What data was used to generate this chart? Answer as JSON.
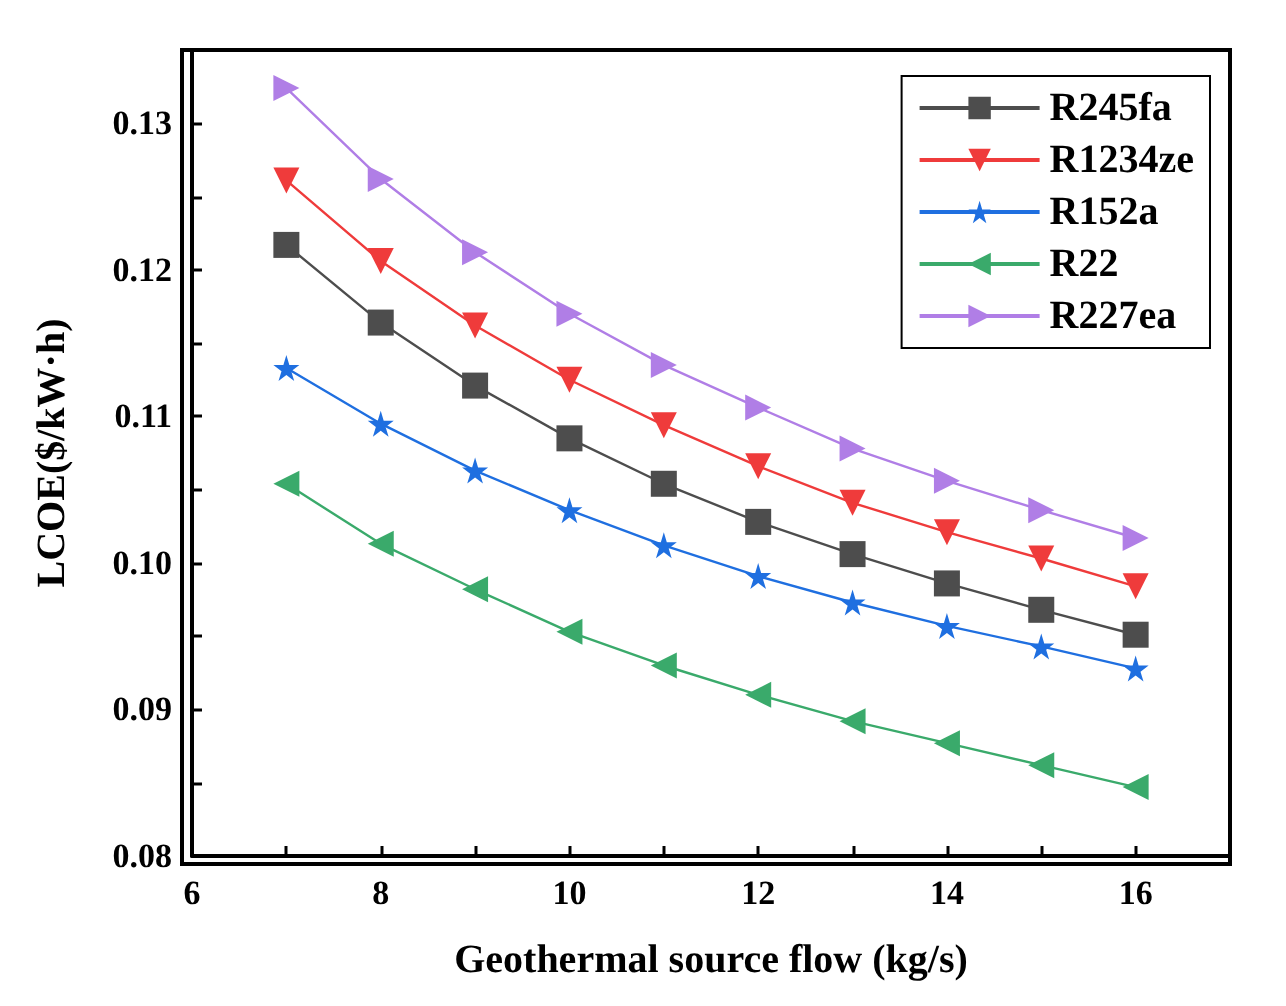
{
  "chart_data": {
    "type": "line",
    "xlabel": "Geothermal source flow (kg/s)",
    "ylabel": "LCOE($/kW·h)",
    "x": [
      7,
      8,
      9,
      10,
      11,
      12,
      13,
      14,
      15,
      16
    ],
    "xlim": [
      6,
      17
    ],
    "xticks": [
      6,
      {
        "value": 7,
        "label": null
      },
      8,
      {
        "value": 9,
        "label": null
      },
      10,
      {
        "value": 11,
        "label": null
      },
      12,
      {
        "value": 13,
        "label": null
      },
      14,
      {
        "value": 15,
        "label": null
      },
      16
    ],
    "ylim": [
      0.08,
      0.135
    ],
    "yticks": [
      0.08,
      {
        "value": 0.085,
        "label": null
      },
      0.09,
      {
        "value": 0.095,
        "label": null
      },
      {
        "value": 0.1,
        "label": "0.10"
      },
      {
        "value": 0.105,
        "label": null
      },
      0.11,
      {
        "value": 0.115,
        "label": null
      },
      0.12,
      {
        "value": 0.125,
        "label": null
      },
      0.13
    ],
    "grid": false,
    "legend": "top right",
    "line_style": "solid",
    "series": [
      {
        "name": "R245fa",
        "color": "#4d4d4d",
        "marker": "square",
        "values": [
          0.1217,
          0.1164,
          0.1121,
          0.1085,
          0.1054,
          0.1028,
          0.1006,
          0.0986,
          0.0968,
          0.0951
        ]
      },
      {
        "name": "R1234ze",
        "color": "#ef3b3b",
        "marker": "triangle-down",
        "values": [
          0.1261,
          0.1206,
          0.1162,
          0.1125,
          0.1094,
          0.1066,
          0.1041,
          0.1021,
          0.1003,
          0.0984
        ]
      },
      {
        "name": "R152a",
        "color": "#1f6fe0",
        "marker": "star",
        "values": [
          0.1133,
          0.1095,
          0.1063,
          0.1036,
          0.1012,
          0.0991,
          0.0973,
          0.0957,
          0.0943,
          0.0928
        ]
      },
      {
        "name": "R22",
        "color": "#3aaa6b",
        "marker": "triangle-left",
        "values": [
          0.1054,
          0.1013,
          0.0982,
          0.0953,
          0.093,
          0.091,
          0.0892,
          0.0877,
          0.0862,
          0.0847
        ]
      },
      {
        "name": "R227ea",
        "color": "#b07ee6",
        "marker": "triangle-right",
        "values": [
          0.1324,
          0.1262,
          0.1212,
          0.117,
          0.1135,
          0.1106,
          0.1078,
          0.1056,
          0.1036,
          0.1017
        ]
      }
    ]
  }
}
